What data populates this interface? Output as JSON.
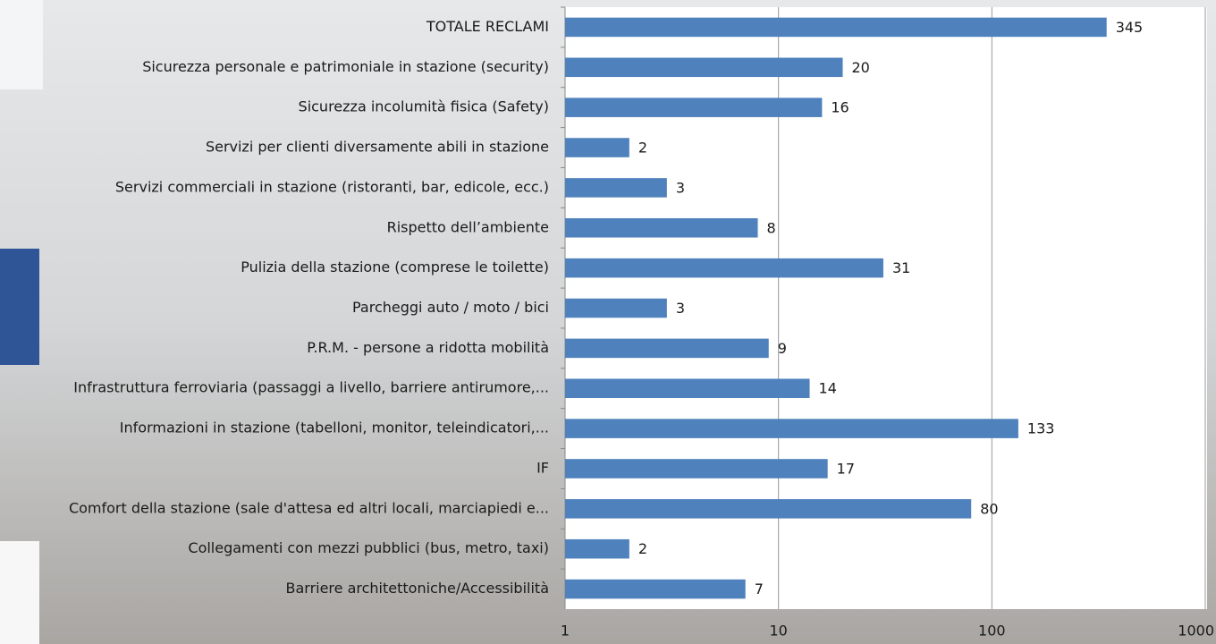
{
  "chart_data": {
    "type": "bar",
    "orientation": "horizontal",
    "log_scale": true,
    "grid": true,
    "color": "#4f81bd",
    "categories": [
      "TOTALE RECLAMI",
      "Sicurezza personale e patrimoniale in stazione (security)",
      "Sicurezza incolumità fisica (Safety)",
      "Servizi per clienti diversamente abili in stazione",
      "Servizi commerciali in stazione (ristoranti, bar, edicole, ecc.)",
      "Rispetto dell’ambiente",
      "Pulizia della stazione (comprese le toilette)",
      "Parcheggi auto / moto / bici",
      "P.R.M. - persone a ridotta mobilità",
      "Infrastruttura ferroviaria (passaggi a livello, barriere antirumore,...",
      "Informazioni in stazione (tabelloni, monitor, teleindicatori,...",
      "IF",
      "Comfort della stazione (sale d'attesa ed altri locali, marciapiedi e...",
      "Collegamenti con mezzi pubblici (bus, metro, taxi)",
      "Barriere architettoniche/Accessibilità"
    ],
    "values": [
      345,
      20,
      16,
      2,
      3,
      8,
      31,
      3,
      9,
      14,
      133,
      17,
      80,
      2,
      7
    ],
    "xlim": [
      1,
      1000
    ],
    "xticks": [
      1,
      10,
      100,
      1000
    ]
  }
}
